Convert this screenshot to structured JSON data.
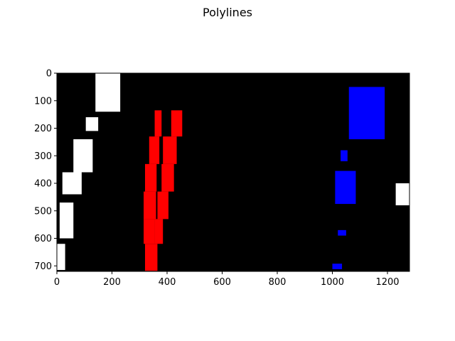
{
  "chart_data": {
    "type": "image",
    "title": "Polylines",
    "xlabel": "",
    "ylabel": "",
    "xlim": [
      0,
      1280
    ],
    "ylim": [
      720,
      0
    ],
    "xticks": [
      0,
      200,
      400,
      600,
      800,
      1000,
      1200
    ],
    "yticks": [
      0,
      100,
      200,
      300,
      400,
      500,
      600,
      700
    ],
    "background": "#000000",
    "grid": false,
    "colors": {
      "left_lane": "#ff0000",
      "right_lane": "#0000ff",
      "noise": "#ffffff"
    },
    "regions": [
      {
        "color": "red",
        "segments": [
          {
            "y": [
              135,
              230
            ],
            "x": [
              [
                355,
                380
              ],
              [
                415,
                455
              ]
            ]
          },
          {
            "y": [
              230,
              330
            ],
            "x": [
              [
                335,
                372
              ],
              [
                385,
                435
              ]
            ]
          },
          {
            "y": [
              330,
              430
            ],
            "x": [
              [
                320,
                362
              ],
              [
                380,
                425
              ]
            ]
          },
          {
            "y": [
              430,
              530
            ],
            "x": [
              [
                315,
                360
              ],
              [
                365,
                405
              ]
            ]
          },
          {
            "y": [
              530,
              620
            ],
            "x": [
              [
                315,
                355
              ],
              [
                355,
                385
              ]
            ]
          },
          {
            "y": [
              620,
              718
            ],
            "x": [
              [
                320,
                365
              ]
            ]
          }
        ]
      },
      {
        "color": "blue",
        "segments": [
          {
            "y": [
              50,
              240
            ],
            "x": [
              [
                1060,
                1190
              ]
            ]
          },
          {
            "y": [
              280,
              320
            ],
            "x": [
              [
                1030,
                1055
              ]
            ]
          },
          {
            "y": [
              355,
              475
            ],
            "x": [
              [
                1010,
                1085
              ]
            ]
          },
          {
            "y": [
              570,
              590
            ],
            "x": [
              [
                1020,
                1050
              ]
            ]
          },
          {
            "y": [
              692,
              712
            ],
            "x": [
              [
                1000,
                1035
              ]
            ]
          }
        ]
      },
      {
        "color": "white",
        "segments": [
          {
            "y": [
              0,
              140
            ],
            "x": [
              [
                140,
                230
              ]
            ]
          },
          {
            "y": [
              160,
              210
            ],
            "x": [
              [
                105,
                150
              ]
            ]
          },
          {
            "y": [
              240,
              360
            ],
            "x": [
              [
                60,
                130
              ]
            ]
          },
          {
            "y": [
              360,
              440
            ],
            "x": [
              [
                20,
                90
              ]
            ]
          },
          {
            "y": [
              470,
              600
            ],
            "x": [
              [
                10,
                60
              ]
            ]
          },
          {
            "y": [
              620,
              715
            ],
            "x": [
              [
                0,
                30
              ]
            ]
          },
          {
            "y": [
              400,
              480
            ],
            "x": [
              [
                1230,
                1280
              ]
            ]
          }
        ]
      }
    ]
  }
}
